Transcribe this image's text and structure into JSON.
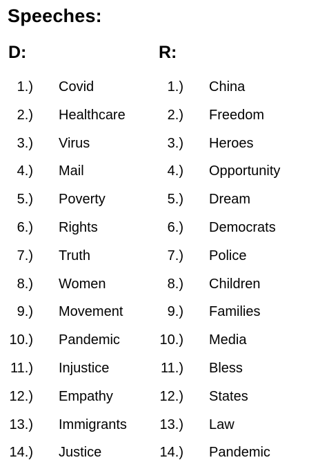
{
  "title": "Speeches:",
  "columns": [
    {
      "heading": "D:",
      "numbers": [
        "1.)",
        "2.)",
        "3.)",
        "4.)",
        "5.)",
        "6.)",
        "7.)",
        "8.)",
        "9.)",
        "10.)",
        "11.)",
        "12.)",
        "13.)",
        "14.)"
      ],
      "words": [
        "Covid",
        "Healthcare",
        "Virus",
        "Mail",
        "Poverty",
        "Rights",
        "Truth",
        "Women",
        "Movement",
        "Pandemic",
        "Injustice",
        "Empathy",
        "Immigrants",
        "Justice"
      ]
    },
    {
      "heading": "R:",
      "numbers": [
        "1.)",
        "2.)",
        "3.)",
        "4.)",
        "5.)",
        "6.)",
        "7.)",
        "8.)",
        "9.)",
        "10.)",
        "11.)",
        "12.)",
        "13.)",
        "14.)"
      ],
      "words": [
        "China",
        "Freedom",
        "Heroes",
        "Opportunity",
        "Dream",
        "Democrats",
        "Police",
        "Children",
        "Families",
        "Media",
        "Bless",
        "States",
        "Law",
        "Pandemic"
      ]
    }
  ]
}
